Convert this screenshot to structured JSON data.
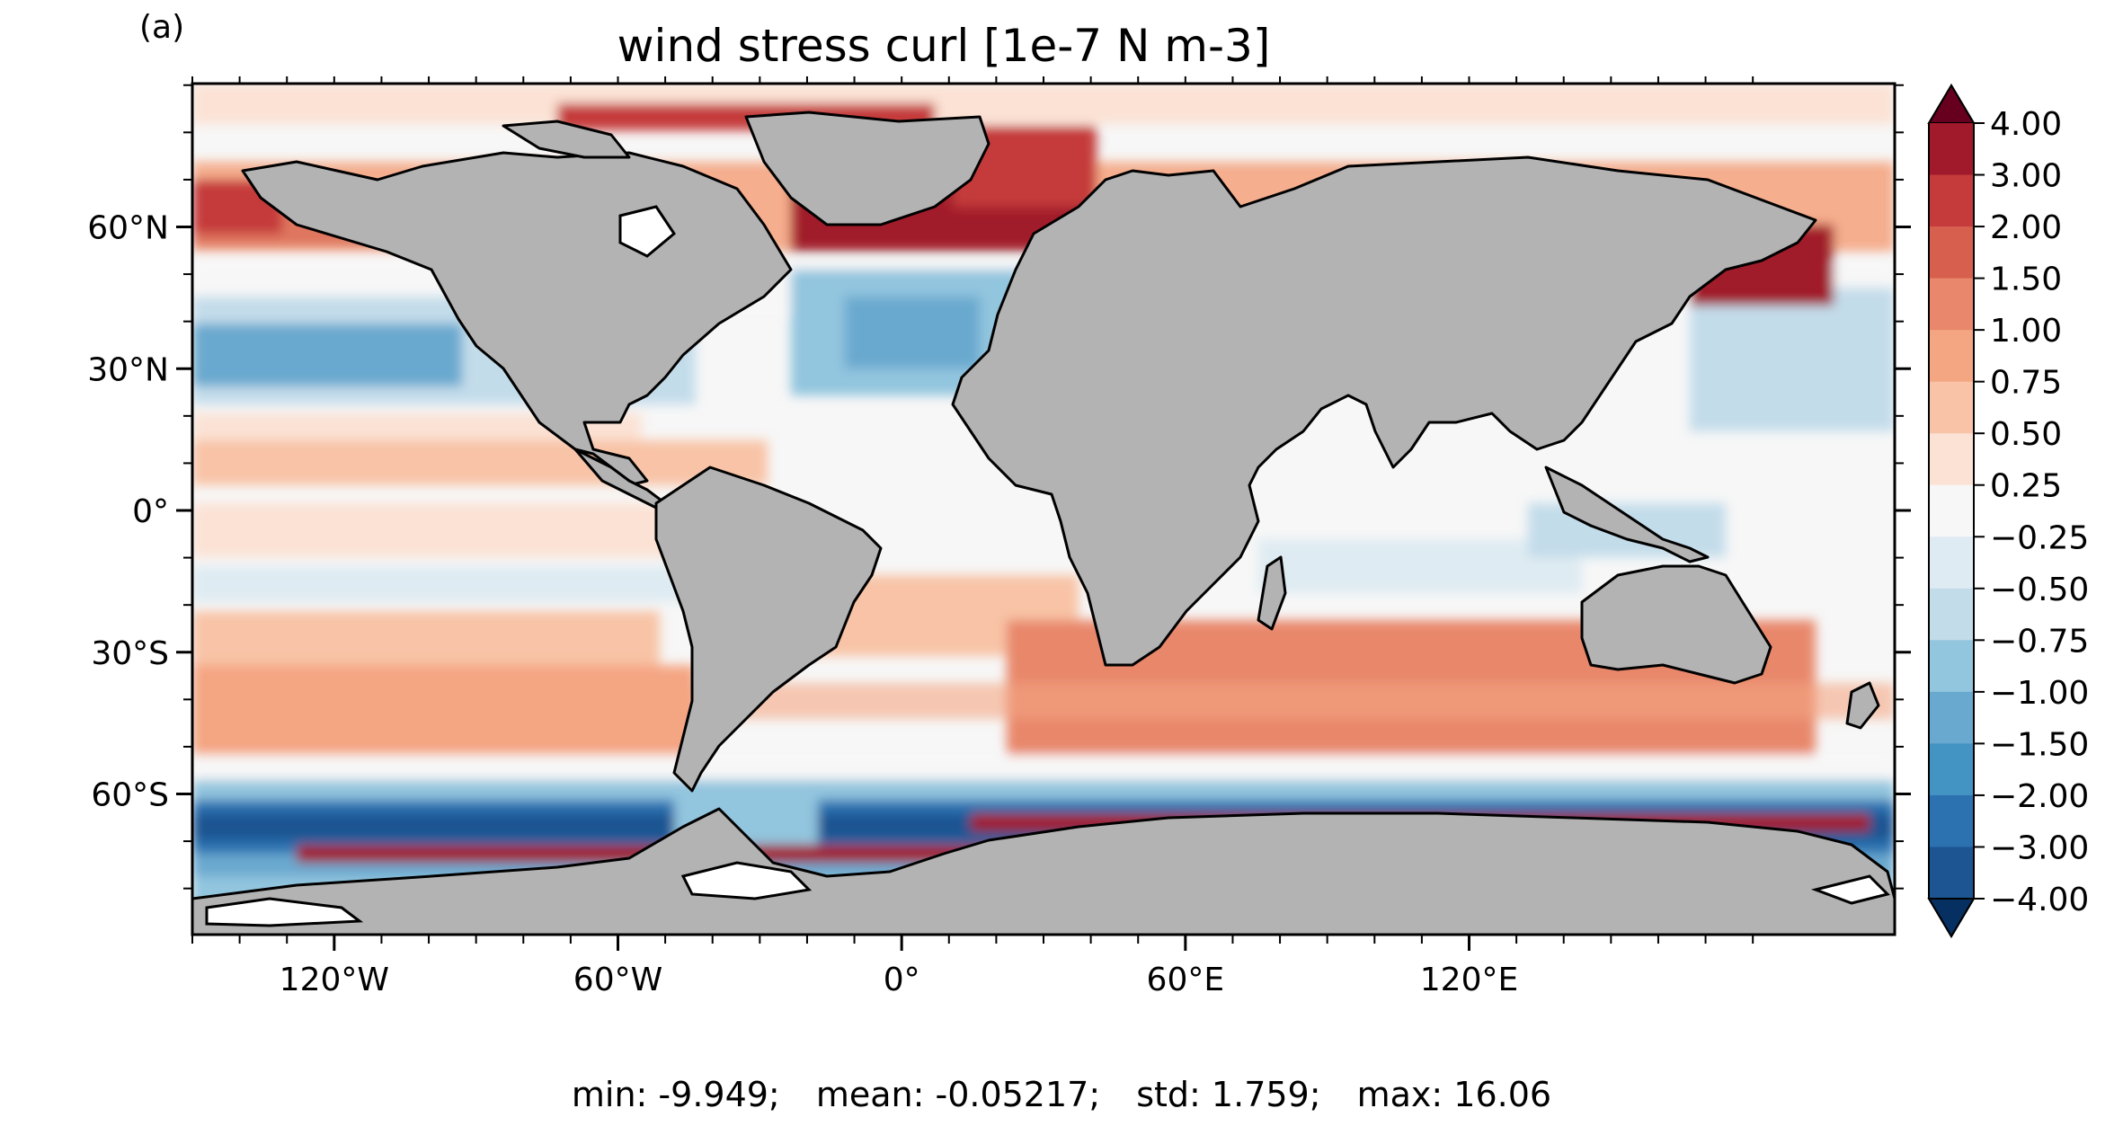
{
  "panel_label": "(a)",
  "title": "wind stress curl [1e-7 N m-3]",
  "x_ticks": [
    {
      "lon": -120,
      "label": "120°W"
    },
    {
      "lon": -60,
      "label": "60°W"
    },
    {
      "lon": 0,
      "label": "0°"
    },
    {
      "lon": 60,
      "label": "60°E"
    },
    {
      "lon": 120,
      "label": "120°E"
    }
  ],
  "y_ticks": [
    {
      "lat": 60,
      "label": "60°N"
    },
    {
      "lat": 30,
      "label": "30°N"
    },
    {
      "lat": 0,
      "label": "0°"
    },
    {
      "lat": -30,
      "label": "30°S"
    },
    {
      "lat": -60,
      "label": "60°S"
    }
  ],
  "colorbar": {
    "levels": [
      "4.00",
      "3.00",
      "2.00",
      "1.50",
      "1.00",
      "0.75",
      "0.50",
      "0.25",
      "−0.25",
      "−0.50",
      "−0.75",
      "−1.00",
      "−1.50",
      "−2.00",
      "−3.00",
      "−4.00"
    ],
    "colors": [
      "#67001f",
      "#a11a2b",
      "#c53a3b",
      "#d6604d",
      "#e8876b",
      "#f4a582",
      "#f8c3a6",
      "#fbe2d4",
      "#f7f7f7",
      "#deebf2",
      "#c3dcea",
      "#92c5de",
      "#6aa9cf",
      "#4393c3",
      "#2c72b1",
      "#1c5592",
      "#053061"
    ],
    "extend": "both"
  },
  "stats": {
    "min": "min: -9.949;",
    "mean": "mean: -0.05217;",
    "std": "std: 1.759;",
    "max": "max: 16.06"
  },
  "colors": {
    "land": "#b3b3b3",
    "coast": "#000000",
    "ice": "#ffffff"
  }
}
